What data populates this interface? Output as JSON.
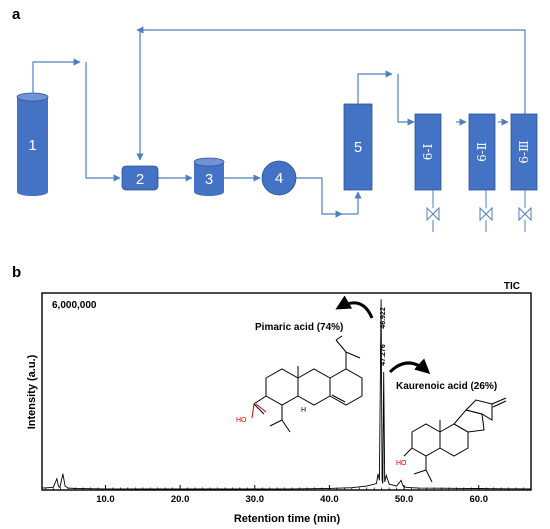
{
  "panel_a": {
    "letter": "a",
    "nodes": [
      "1",
      "2",
      "3",
      "4",
      "5"
    ],
    "columns": [
      "6-Ⅰ",
      "6-Ⅱ",
      "6-Ⅲ"
    ],
    "colors": {
      "fill": "#4472c4",
      "line": "#4f81bd"
    }
  },
  "panel_b": {
    "letter": "b",
    "trace_label": "TIC",
    "y_max_label": "6,000,000",
    "peak1_label": "46.922",
    "peak2_label": "47.276",
    "compound1": "Pimaric acid (74%)",
    "compound2": "Kaurenoic acid (26%)",
    "ho1": "HO",
    "ho2": "HO",
    "h_label": "H",
    "chart_data": {
      "type": "line",
      "title": "TIC",
      "xlabel": "Retention time (min)",
      "ylabel": "Intensity (a.u.)",
      "xlim": [
        1.5,
        67
      ],
      "ylim": [
        0,
        6000000
      ],
      "x_ticks": [
        "10.0",
        "20.0",
        "30.0",
        "40.0",
        "50.0",
        "60.0"
      ],
      "x_tick_values": [
        10,
        20,
        30,
        40,
        50,
        60
      ],
      "series": [
        {
          "x": [
            1.5,
            3.0,
            3.5,
            3.7,
            3.9,
            4.3,
            4.6,
            5.0,
            6.0,
            8.0,
            10.0,
            15.0,
            20.0,
            25.0,
            30.0,
            35.0,
            40.0,
            43.0,
            45.0,
            46.3,
            46.5,
            46.7,
            46.922,
            47.05,
            47.15,
            47.276,
            47.4,
            47.6,
            48.0,
            48.5,
            49.0,
            49.6,
            49.8,
            50.0,
            50.4,
            51.0,
            52.0,
            55.0,
            58.0,
            60.0,
            62.0,
            65.0,
            67.0
          ],
          "y": [
            60000,
            80000,
            350000,
            120000,
            80000,
            500000,
            120000,
            60000,
            45000,
            40000,
            35000,
            30000,
            30000,
            30000,
            30000,
            35000,
            50000,
            70000,
            120000,
            200000,
            500000,
            300000,
            5900000,
            300000,
            200000,
            3650000,
            250000,
            450000,
            180000,
            150000,
            120000,
            300000,
            150000,
            100000,
            80000,
            70000,
            60000,
            55000,
            50000,
            45000,
            40000,
            38000,
            35000
          ]
        }
      ]
    }
  }
}
